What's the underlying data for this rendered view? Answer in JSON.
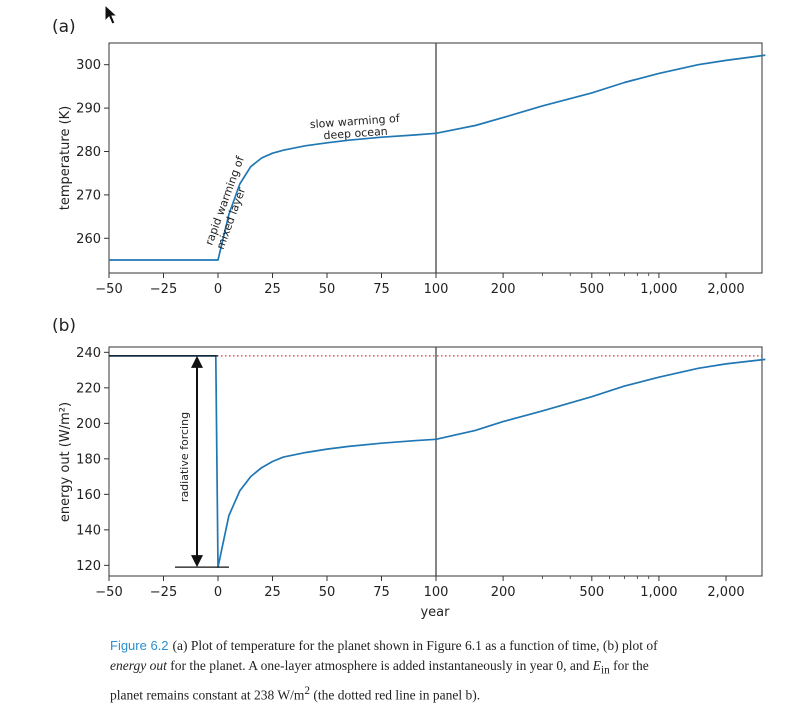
{
  "panels": [
    {
      "label": "(a)",
      "ylabel": "temperature (K)",
      "ylim": [
        252,
        305
      ],
      "yticks": [
        260,
        270,
        280,
        290,
        300
      ],
      "annotations": [
        "rapid warming of\nmixed layer",
        "slow warming of\ndeep ocean"
      ]
    },
    {
      "label": "(b)",
      "ylabel": "energy out (W/m²)",
      "ylim": [
        114,
        243
      ],
      "yticks": [
        120,
        140,
        160,
        180,
        200,
        220,
        240
      ],
      "annotations": [
        "radiative forcing"
      ]
    }
  ],
  "xlabel": "year",
  "xtick_labels": [
    "−50",
    "−25",
    "0",
    "25",
    "50",
    "75",
    "100",
    "200",
    "500",
    "1,000",
    "2,000"
  ],
  "chart_data": [
    {
      "type": "line",
      "title": "(a)",
      "xlabel": "",
      "ylabel": "temperature (K)",
      "xscale": "linear from −50 to 100, logarithmic from 100 to about 3,000",
      "xlim": [
        -50,
        3000
      ],
      "ylim": [
        252,
        305
      ],
      "grid": false,
      "line_color": "#1f77b4",
      "divider_at_year": 100,
      "x": [
        -50,
        -10,
        0,
        5,
        10,
        15,
        20,
        25,
        30,
        40,
        50,
        60,
        75,
        90,
        100,
        150,
        200,
        300,
        500,
        700,
        1000,
        1500,
        2000,
        3000
      ],
      "y": [
        255,
        255,
        255,
        265.5,
        272.5,
        276.5,
        278.5,
        279.6,
        280.3,
        281.3,
        282.0,
        282.6,
        283.3,
        283.8,
        284.2,
        286.0,
        287.8,
        290.5,
        293.5,
        295.9,
        298.0,
        300.0,
        301.0,
        302.2
      ]
    },
    {
      "type": "line",
      "title": "(b)",
      "xlabel": "year",
      "ylabel": "energy out (W/m²)",
      "xscale": "linear from −50 to 100, logarithmic from 100 to about 3,000",
      "xlim": [
        -50,
        3000
      ],
      "ylim": [
        114,
        243
      ],
      "grid": false,
      "line_color": "#1f77b4",
      "reference_line": {
        "y": 238,
        "style": "dotted",
        "color": "#e03030"
      },
      "divider_at_year": 100,
      "forcing_arrow": {
        "from": 238,
        "to": 119
      },
      "x": [
        -50,
        -1,
        0,
        5,
        10,
        15,
        20,
        25,
        30,
        40,
        50,
        60,
        75,
        90,
        100,
        150,
        200,
        300,
        500,
        700,
        1000,
        1500,
        2000,
        3000
      ],
      "y": [
        238,
        238,
        119,
        148,
        162,
        170,
        175,
        178.5,
        181,
        183.5,
        185.5,
        187,
        188.8,
        190.2,
        191,
        196,
        201,
        207,
        215,
        221,
        226,
        231,
        233.5,
        236
      ]
    }
  ],
  "caption": {
    "label": "Figure 6.2",
    "p1": "(a) Plot of temperature for the planet shown in Figure 6.1 as a function of time, (b) plot of",
    "p2_italic": "energy out",
    "p2_rest": " for the planet. A one-layer atmosphere is added instantaneously in year 0, and ",
    "p2_E": "E",
    "p2_sub": "in",
    "p2_end": " for the",
    "p3": "planet remains constant at 238 W/m",
    "p3_sup": "2",
    "p3_end": " (the dotted red line in panel b)."
  },
  "colors": {
    "line": "#1f77b4",
    "reference": "#e03030",
    "axis": "#333333",
    "caption_label": "#2a8fcf"
  },
  "icons": {
    "cursor": "mouse-pointer-icon"
  }
}
